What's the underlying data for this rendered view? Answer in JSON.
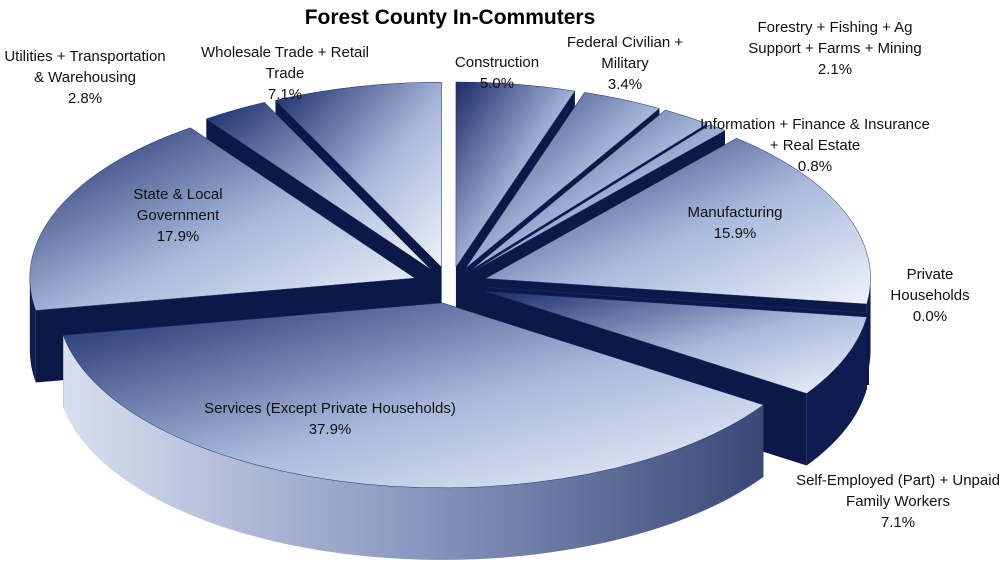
{
  "chart_data": {
    "type": "pie",
    "title": "Forest County In-Commuters",
    "categories": [
      "Construction",
      "Federal Civilian + Military",
      "Forestry + Fishing + Ag Support + Farms + Mining",
      "Information + Finance & Insurance + Real Estate",
      "Manufacturing",
      "Private Households",
      "Self-Employed (Part) + Unpaid Family Workers",
      "Services (Except Private Households)",
      "State & Local Government",
      "Utilities + Transportation & Warehousing",
      "Wholesale Trade + Retail Trade"
    ],
    "values": [
      5.0,
      3.4,
      2.1,
      0.8,
      15.9,
      0.0,
      7.1,
      37.9,
      17.9,
      2.8,
      7.1
    ],
    "value_labels": [
      "5.0%",
      "3.4%",
      "2.1%",
      "0.8%",
      "15.9%",
      "0.0%",
      "7.1%",
      "37.9%",
      "17.9%",
      "2.8%",
      "7.1%"
    ],
    "color": "#1c2d6e"
  }
}
